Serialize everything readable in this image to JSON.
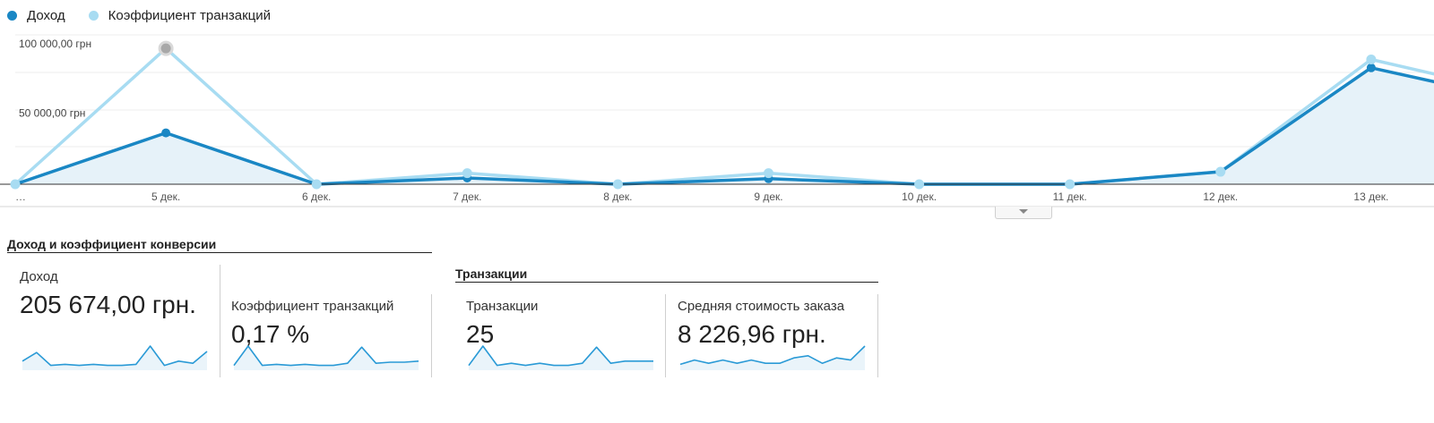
{
  "legend": [
    {
      "label": "Доход",
      "color": "#1a87c4"
    },
    {
      "label": "Коэффициент транзакций",
      "color": "#a8dcf2"
    }
  ],
  "chart_data": {
    "type": "line",
    "y_tick_labels": [
      "100 000,00 грн",
      "50 000,00 грн"
    ],
    "y_ticks": [
      100000,
      50000
    ],
    "ylim": [
      0,
      110000
    ],
    "x_tick_labels": [
      "…",
      "5 дек.",
      "6 дек.",
      "7 дек.",
      "8 дек.",
      "9 дек.",
      "10 дек.",
      "11 дек.",
      "12 дек.",
      "13 дек."
    ],
    "series": [
      {
        "name": "Доход",
        "color": "#1a87c4",
        "values": [
          0,
          37000,
          0,
          4500,
          0,
          4000,
          0,
          0,
          9000,
          84000,
          60000
        ]
      },
      {
        "name": "Коэффициент транзакций",
        "color": "#a8dcf2",
        "values": [
          0,
          98000,
          0,
          8000,
          0,
          8000,
          0,
          0,
          9000,
          90000,
          65000
        ]
      }
    ],
    "grid": true,
    "legend_position": "top-left"
  },
  "section_conversion": {
    "title": "Доход и коэффициент конверсии",
    "cards": [
      {
        "label": "Доход",
        "value": "205 674,00 грн.",
        "spark": [
          0.3,
          0.7,
          0.1,
          0.15,
          0.1,
          0.15,
          0.1,
          0.1,
          0.15,
          1.0,
          0.1,
          0.3,
          0.2,
          0.75
        ]
      },
      {
        "label": "Коэффициент транзакций",
        "value": "0,17 %",
        "spark": [
          0.1,
          1.0,
          0.1,
          0.15,
          0.1,
          0.15,
          0.1,
          0.1,
          0.2,
          0.95,
          0.2,
          0.25,
          0.25,
          0.3
        ]
      }
    ]
  },
  "section_transactions": {
    "title": "Транзакции",
    "cards": [
      {
        "label": "Транзакции",
        "value": "25",
        "spark": [
          0.1,
          1.0,
          0.1,
          0.2,
          0.1,
          0.2,
          0.1,
          0.1,
          0.2,
          0.95,
          0.2,
          0.3,
          0.3,
          0.3
        ]
      },
      {
        "label": "Средняя стоимость заказа",
        "value": "8 226,96 грн.",
        "spark": [
          0.15,
          0.35,
          0.2,
          0.35,
          0.2,
          0.35,
          0.2,
          0.2,
          0.45,
          0.55,
          0.2,
          0.45,
          0.35,
          1.0
        ]
      }
    ]
  }
}
